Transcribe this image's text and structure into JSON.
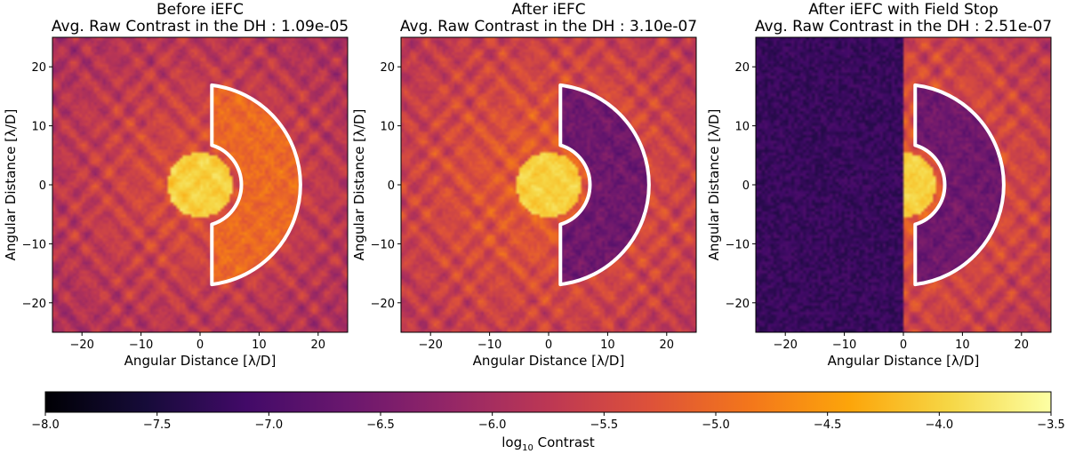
{
  "chart_data": {
    "type": "heatmap",
    "panels": [
      {
        "title_line1": "Before iEFC",
        "title_line2": "Avg. Raw Contrast in the DH : 1.09e-05",
        "xlabel": "Angular Distance [λ/D]",
        "ylabel": "Angular Distance [λ/D]",
        "xlim": [
          -25,
          25
        ],
        "ylim": [
          -25,
          25
        ],
        "xticks": [
          -20,
          -10,
          0,
          10,
          20
        ],
        "yticks": [
          -20,
          -10,
          0,
          10,
          20
        ],
        "core_radius": 5.5,
        "background_level": -5.4,
        "dark_hole_level": -5.0,
        "field_stop": false,
        "dark_hole": {
          "inner_radius": 7,
          "outer_radius": 17,
          "x_min": 2
        }
      },
      {
        "title_line1": "After iEFC",
        "title_line2": "Avg. Raw Contrast in the DH : 3.10e-07",
        "xlabel": "Angular Distance [λ/D]",
        "ylabel": "Angular Distance [λ/D]",
        "xlim": [
          -25,
          25
        ],
        "ylim": [
          -25,
          25
        ],
        "xticks": [
          -20,
          -10,
          0,
          10,
          20
        ],
        "yticks": [
          -20,
          -10,
          0,
          10,
          20
        ],
        "core_radius": 5.5,
        "background_level": -5.2,
        "dark_hole_level": -6.6,
        "field_stop": false,
        "dark_hole": {
          "inner_radius": 7,
          "outer_radius": 17,
          "x_min": 2
        }
      },
      {
        "title_line1": "After iEFC with Field Stop",
        "title_line2": "Avg. Raw Contrast in the DH : 2.51e-07",
        "xlabel": "Angular Distance [λ/D]",
        "ylabel": "Angular Distance [λ/D]",
        "xlim": [
          -25,
          25
        ],
        "ylim": [
          -25,
          25
        ],
        "xticks": [
          -20,
          -10,
          0,
          10,
          20
        ],
        "yticks": [
          -20,
          -10,
          0,
          10,
          20
        ],
        "core_radius": 5.5,
        "background_level": -5.2,
        "dark_hole_level": -6.6,
        "field_stop": true,
        "field_stop_edge": 0,
        "blocked_level": -7.2,
        "dark_hole": {
          "inner_radius": 7,
          "outer_radius": 17,
          "x_min": 2
        }
      }
    ],
    "colorbar": {
      "label_prefix": "log",
      "label_subscript": "10",
      "label_suffix": " Contrast",
      "vmin": -8.0,
      "vmax": -3.5,
      "ticks": [
        -8.0,
        -7.5,
        -7.0,
        -6.5,
        -6.0,
        -5.5,
        -5.0,
        -4.5,
        -4.0,
        -3.5
      ],
      "tick_labels": [
        "−8.0",
        "−7.5",
        "−7.0",
        "−6.5",
        "−6.0",
        "−5.5",
        "−5.0",
        "−4.5",
        "−4.0",
        "−3.5"
      ],
      "colormap": "inferno"
    }
  }
}
